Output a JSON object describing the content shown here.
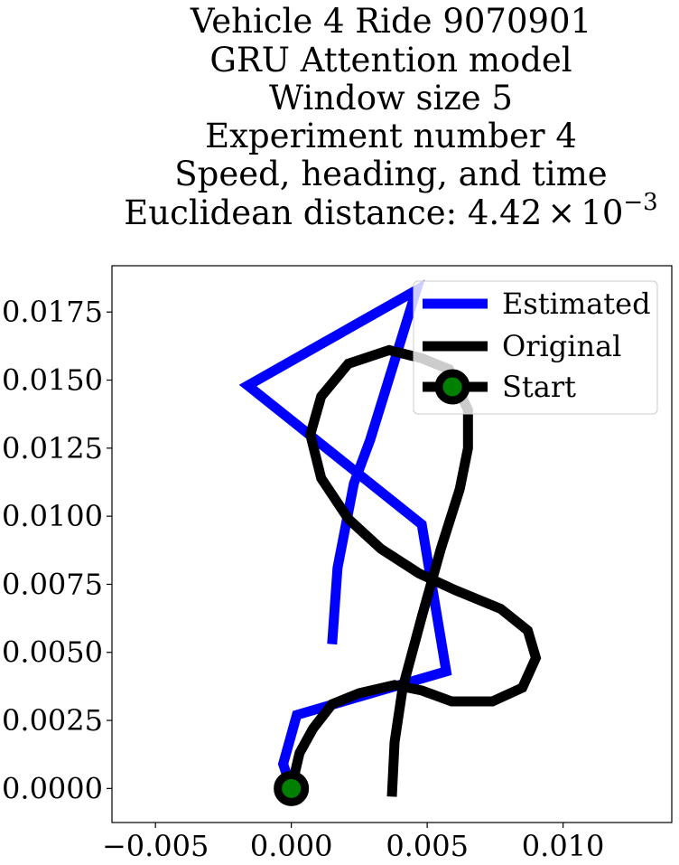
{
  "chart_data": {
    "type": "line",
    "title_lines": [
      "Vehicle 4 Ride 9070901",
      "GRU Attention model",
      "Window size 5",
      "Experiment number 4",
      "Speed, heading, and time"
    ],
    "title_last_line": {
      "prefix": "Euclidean distance: ",
      "mantissa": "4.42",
      "times": "×",
      "base": "10",
      "exponent": "−3"
    },
    "xlim": [
      -0.0066,
      0.014
    ],
    "ylim": [
      -0.00125,
      0.0192
    ],
    "x_ticks": [
      -0.005,
      0.0,
      0.005,
      0.01
    ],
    "x_tick_labels": [
      "−0.005",
      "0.000",
      "0.005",
      "0.010"
    ],
    "y_ticks": [
      0.0,
      0.0025,
      0.005,
      0.0075,
      0.01,
      0.0125,
      0.015,
      0.0175
    ],
    "y_tick_labels": [
      "0.0000",
      "0.0025",
      "0.0050",
      "0.0075",
      "0.0100",
      "0.0125",
      "0.0150",
      "0.0175"
    ],
    "grid": false,
    "legend_position": "top-right",
    "series": [
      {
        "name": "Estimated",
        "color": "#0000ff",
        "points": [
          [
            0.0015,
            0.0053
          ],
          [
            0.0017,
            0.0081
          ],
          [
            0.0023,
            0.0112
          ],
          [
            0.0029,
            0.0128
          ],
          [
            0.0046,
            0.0183
          ],
          [
            -0.0016,
            0.0148
          ],
          [
            0.0048,
            0.0097
          ],
          [
            0.0057,
            0.0043
          ],
          [
            0.0002,
            0.0027
          ],
          [
            -0.0003,
            0.0009
          ],
          [
            0.0,
            0.0
          ]
        ]
      },
      {
        "name": "Original",
        "color": "#000000",
        "points": [
          [
            0.0037,
            -0.0003
          ],
          [
            0.0038,
            0.0017
          ],
          [
            0.0041,
            0.0037
          ],
          [
            0.0048,
            0.0063
          ],
          [
            0.0055,
            0.0088
          ],
          [
            0.0062,
            0.011
          ],
          [
            0.0065,
            0.0125
          ],
          [
            0.0065,
            0.0139
          ],
          [
            0.0058,
            0.0154
          ],
          [
            0.0048,
            0.0158
          ],
          [
            0.0036,
            0.0161
          ],
          [
            0.0021,
            0.0156
          ],
          [
            0.0011,
            0.0144
          ],
          [
            0.0007,
            0.013
          ],
          [
            0.0011,
            0.0114
          ],
          [
            0.0021,
            0.0099
          ],
          [
            0.0033,
            0.0088
          ],
          [
            0.0047,
            0.0079
          ],
          [
            0.006,
            0.0073
          ],
          [
            0.0077,
            0.0066
          ],
          [
            0.0087,
            0.0058
          ],
          [
            0.009,
            0.0048
          ],
          [
            0.0085,
            0.0037
          ],
          [
            0.0074,
            0.0032
          ],
          [
            0.0059,
            0.0032
          ],
          [
            0.0048,
            0.0036
          ],
          [
            0.0038,
            0.0038
          ],
          [
            0.0025,
            0.0035
          ],
          [
            0.0015,
            0.0031
          ],
          [
            0.0008,
            0.0022
          ],
          [
            0.0003,
            0.0013
          ],
          [
            0.0,
            0.0
          ]
        ]
      },
      {
        "name": "Start",
        "color": "#000000",
        "marker_fill": "#008000",
        "points": [
          [
            0.0,
            0.0
          ]
        ]
      }
    ]
  }
}
